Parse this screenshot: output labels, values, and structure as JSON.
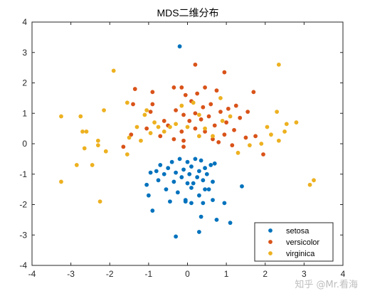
{
  "chart_data": {
    "type": "scatter",
    "title": "MDS二维分布",
    "xlabel": "",
    "ylabel": "",
    "xlim": [
      -4,
      4
    ],
    "ylim": [
      -4,
      4
    ],
    "xticks": [
      "-4",
      "-3",
      "-2",
      "-1",
      "0",
      "1",
      "2",
      "3",
      "4"
    ],
    "yticks": [
      "-4",
      "-3",
      "-2",
      "-1",
      "0",
      "1",
      "2",
      "3",
      "4"
    ],
    "grid": false,
    "legend_position": "bottom-right",
    "series": [
      {
        "name": "setosa",
        "color": "#0072BD",
        "points": [
          [
            -0.2,
            3.2
          ],
          [
            -1.05,
            -1.35
          ],
          [
            -0.95,
            -0.95
          ],
          [
            -1.0,
            -1.7
          ],
          [
            -0.9,
            -2.2
          ],
          [
            -0.8,
            -0.9
          ],
          [
            -0.75,
            -1.2
          ],
          [
            -0.7,
            -0.7
          ],
          [
            -0.6,
            -1.0
          ],
          [
            -0.55,
            -1.5
          ],
          [
            -0.5,
            -0.8
          ],
          [
            -0.45,
            -1.9
          ],
          [
            -0.4,
            -0.6
          ],
          [
            -0.35,
            -1.25
          ],
          [
            -0.3,
            -0.95
          ],
          [
            -0.25,
            -1.6
          ],
          [
            -0.2,
            -0.5
          ],
          [
            -0.15,
            -1.1
          ],
          [
            -0.1,
            -0.85
          ],
          [
            -0.05,
            -1.85
          ],
          [
            0.0,
            -0.6
          ],
          [
            0.0,
            -1.3
          ],
          [
            0.05,
            -1.0
          ],
          [
            0.1,
            -0.75
          ],
          [
            0.1,
            -1.45
          ],
          [
            0.15,
            -1.3
          ],
          [
            0.2,
            -0.5
          ],
          [
            0.25,
            -1.1
          ],
          [
            0.3,
            -0.9
          ],
          [
            0.3,
            -1.7
          ],
          [
            0.35,
            -0.55
          ],
          [
            0.4,
            -1.2
          ],
          [
            0.4,
            -1.95
          ],
          [
            0.45,
            -0.8
          ],
          [
            0.45,
            -1.5
          ],
          [
            0.5,
            -1.0
          ],
          [
            0.55,
            -1.5
          ],
          [
            0.6,
            -0.7
          ],
          [
            0.65,
            -1.25
          ],
          [
            0.65,
            -1.85
          ],
          [
            0.7,
            -0.65
          ],
          [
            0.1,
            -1.95
          ],
          [
            -0.05,
            -1.9
          ],
          [
            0.35,
            -2.4
          ],
          [
            0.75,
            -2.5
          ],
          [
            1.1,
            -2.6
          ],
          [
            1.4,
            -1.4
          ],
          [
            0.3,
            -2.9
          ],
          [
            -0.3,
            -3.05
          ],
          [
            0.95,
            -1.95
          ]
        ]
      },
      {
        "name": "versicolor",
        "color": "#D95319",
        "points": [
          [
            0.2,
            2.6
          ],
          [
            0.95,
            2.35
          ],
          [
            -0.15,
            1.85
          ],
          [
            -0.35,
            1.85
          ],
          [
            0.75,
            1.75
          ],
          [
            -1.35,
            1.8
          ],
          [
            -0.9,
            1.7
          ],
          [
            0.45,
            1.85
          ],
          [
            -0.05,
            1.6
          ],
          [
            1.7,
            1.7
          ],
          [
            0.25,
            1.65
          ],
          [
            -1.4,
            1.3
          ],
          [
            -0.9,
            1.3
          ],
          [
            0.6,
            1.3
          ],
          [
            1.05,
            1.15
          ],
          [
            1.25,
            1.25
          ],
          [
            -0.3,
            1.1
          ],
          [
            0.1,
            1.4
          ],
          [
            0.4,
            1.2
          ],
          [
            0.55,
            0.9
          ],
          [
            0.85,
            1.05
          ],
          [
            -0.1,
            0.95
          ],
          [
            0.2,
            1.0
          ],
          [
            1.55,
            1.05
          ],
          [
            -0.95,
            1.05
          ],
          [
            -1.05,
            0.5
          ],
          [
            -0.6,
            0.75
          ],
          [
            -0.5,
            0.6
          ],
          [
            -0.15,
            0.4
          ],
          [
            0.05,
            0.75
          ],
          [
            0.35,
            0.8
          ],
          [
            0.7,
            0.6
          ],
          [
            1.0,
            0.7
          ],
          [
            1.35,
            0.85
          ],
          [
            -0.7,
            0.25
          ],
          [
            -0.35,
            0.15
          ],
          [
            -0.1,
            0.1
          ],
          [
            0.2,
            0.5
          ],
          [
            0.45,
            0.4
          ],
          [
            0.65,
            0.15
          ],
          [
            0.95,
            0.3
          ],
          [
            1.2,
            0.45
          ],
          [
            1.5,
            0.2
          ],
          [
            1.75,
            0.25
          ],
          [
            1.95,
            -0.35
          ],
          [
            1.15,
            -0.05
          ],
          [
            0.8,
            0.05
          ],
          [
            -0.1,
            -0.1
          ],
          [
            -1.45,
            0.3
          ],
          [
            -1.65,
            -0.1
          ]
        ]
      },
      {
        "name": "virginica",
        "color": "#EDB120",
        "points": [
          [
            2.35,
            2.6
          ],
          [
            -1.9,
            2.4
          ],
          [
            -2.15,
            1.1
          ],
          [
            -1.55,
            1.35
          ],
          [
            -3.25,
            0.9
          ],
          [
            -2.75,
            0.9
          ],
          [
            -2.7,
            0.4
          ],
          [
            -2.6,
            0.4
          ],
          [
            -2.65,
            -0.15
          ],
          [
            -2.3,
            -0.05
          ],
          [
            -2.3,
            0.1
          ],
          [
            -2.45,
            -0.7
          ],
          [
            -2.85,
            -0.7
          ],
          [
            -3.25,
            -1.25
          ],
          [
            -2.25,
            -1.9
          ],
          [
            -2.1,
            -0.25
          ],
          [
            -1.55,
            -0.35
          ],
          [
            -1.5,
            0.2
          ],
          [
            -1.3,
            0.55
          ],
          [
            -1.2,
            0.1
          ],
          [
            -1.05,
            1.1
          ],
          [
            -0.95,
            0.35
          ],
          [
            -0.85,
            0.7
          ],
          [
            -0.75,
            0.55
          ],
          [
            -0.6,
            0.4
          ],
          [
            -0.45,
            0.55
          ],
          [
            -0.3,
            0.65
          ],
          [
            -0.15,
            1.25
          ],
          [
            0.0,
            0.55
          ],
          [
            0.15,
            1.35
          ],
          [
            0.3,
            0.95
          ],
          [
            0.45,
            0.5
          ],
          [
            0.65,
            0.25
          ],
          [
            0.85,
            1.5
          ],
          [
            0.9,
            0.75
          ],
          [
            1.1,
            0.9
          ],
          [
            1.3,
            -0.3
          ],
          [
            1.6,
            -0.05
          ],
          [
            1.9,
            0.0
          ],
          [
            2.05,
            0.55
          ],
          [
            2.15,
            0.3
          ],
          [
            2.3,
            1.05
          ],
          [
            2.35,
            0.1
          ],
          [
            2.5,
            0.4
          ],
          [
            2.55,
            0.65
          ],
          [
            2.8,
            0.7
          ],
          [
            3.15,
            -1.35
          ],
          [
            3.25,
            -1.2
          ],
          [
            -1.1,
            0.95
          ],
          [
            0.3,
            0.25
          ]
        ]
      }
    ]
  },
  "watermark": "知乎 @Mr.看海"
}
